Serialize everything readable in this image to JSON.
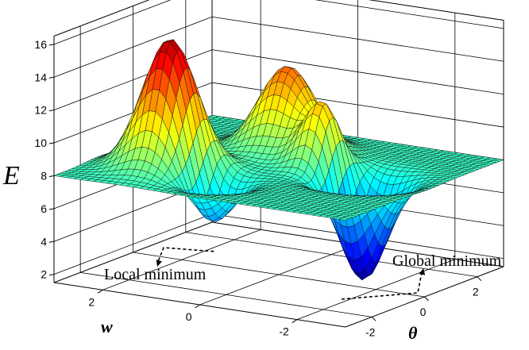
{
  "chart_data": {
    "type": "surface",
    "title": "",
    "axes": {
      "x": {
        "label": "θ",
        "range": [
          -3,
          3
        ],
        "ticks": [
          "-2",
          "0",
          "2"
        ]
      },
      "y": {
        "label": "w",
        "range": [
          -3,
          3
        ],
        "ticks": [
          "-2",
          "0",
          "2"
        ]
      },
      "z": {
        "label": "E",
        "range": [
          1.5,
          16.5
        ],
        "ticks": [
          "2",
          "4",
          "6",
          "8",
          "10",
          "12",
          "14",
          "16"
        ]
      }
    },
    "grid": true,
    "colormap": "jet",
    "surface": {
      "baseline": 8,
      "peak_max": 16.5,
      "global_minimum": {
        "theta": 0.2,
        "w": -1.6,
        "E": 1.6
      },
      "local_minimum": {
        "theta": -1.6,
        "w": 0.6,
        "E": 4.2
      }
    },
    "annotations": [
      {
        "text": "Local minimum",
        "target": "local_minimum"
      },
      {
        "text": "Global minimum",
        "target": "global_minimum"
      }
    ]
  }
}
